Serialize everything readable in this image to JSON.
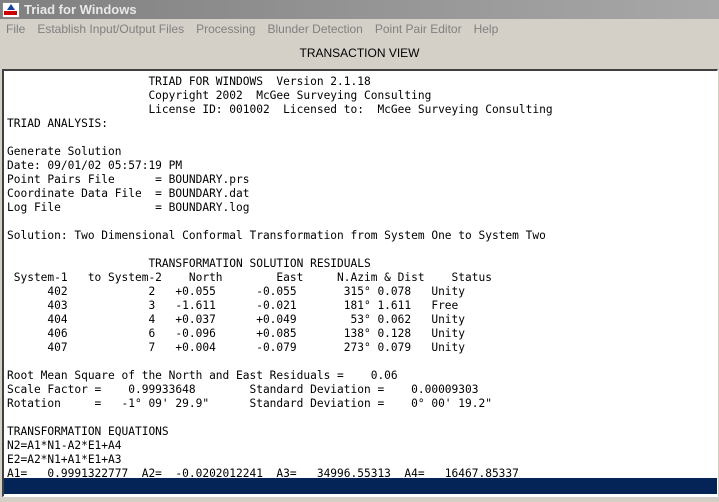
{
  "window": {
    "title": "Triad for Windows"
  },
  "menu": [
    "File",
    "Establish Input/Output Files",
    "Processing",
    "Blunder Detection",
    "Point Pair Editor",
    "Help"
  ],
  "view_label": "TRANSACTION VIEW",
  "colors": {
    "selection_bar": "#042458",
    "titlebar": "#808080"
  },
  "lines": [
    "                     TRIAD FOR WINDOWS  Version 2.1.18",
    "                     Copyright 2002  McGee Surveying Consulting",
    "                     License ID: 001002  Licensed to:  McGee Surveying Consulting",
    "TRIAD ANALYSIS:",
    "",
    "Generate Solution",
    "Date: 09/01/02 05:57:19 PM",
    "Point Pairs File      = BOUNDARY.prs",
    "Coordinate Data File  = BOUNDARY.dat",
    "Log File              = BOUNDARY.log",
    "",
    "Solution: Two Dimensional Conformal Transformation from System One to System Two",
    "",
    "                     TRANSFORMATION SOLUTION RESIDUALS",
    " System-1   to System-2    North        East     N.Azim & Dist    Status",
    "      402            2   +0.055      -0.055       315° 0.078   Unity",
    "      403            3   -1.611      -0.021       181° 1.611   Free",
    "      404            4   +0.037      +0.049        53° 0.062   Unity",
    "      406            6   -0.096      +0.085       138° 0.128   Unity",
    "      407            7   +0.004      -0.079       273° 0.079   Unity",
    "",
    "Root Mean Square of the North and East Residuals =    0.06",
    "Scale Factor =    0.99933648        Standard Deviation =    0.00009303",
    "Rotation     =   -1° 09' 29.9\"      Standard Deviation =    0° 00' 19.2\"",
    "",
    "TRANSFORMATION EQUATIONS",
    "N2=A1*N1-A2*E1+A4",
    "E2=A2*N1+A1*E1+A3",
    "A1=   0.9991322777  A2=  -0.0202012241  A3=   34996.55313  A4=   16467.85337"
  ]
}
